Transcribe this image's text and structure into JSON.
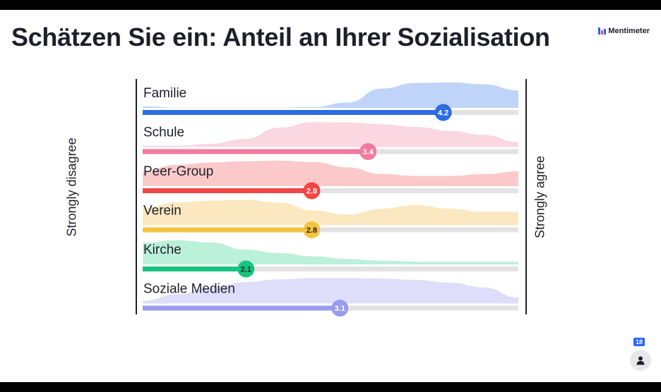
{
  "header": {
    "title": "Schätzen Sie ein: Anteil an Ihrer Sozialisation",
    "brand": "Mentimeter"
  },
  "axis": {
    "left_label": "Strongly disagree",
    "right_label": "Strongly agree"
  },
  "audience": {
    "count": "18",
    "icon": "person-icon"
  },
  "chart_data": {
    "type": "bar",
    "scale": [
      1,
      5
    ],
    "items": [
      {
        "label": "Familie",
        "value": 4.2,
        "value_label": "4.2",
        "color": "#2c6be0",
        "fill": "#bcd2f8",
        "label_color": "#ffffff",
        "distribution": [
          0.06,
          0.01,
          0.01,
          0.01,
          0.01,
          0.03,
          0.2,
          0.72,
          0.93,
          0.95,
          0.88,
          0.65
        ]
      },
      {
        "label": "Schule",
        "value": 3.4,
        "value_label": "3.4",
        "color": "#f27a9e",
        "fill": "#fbd5e0",
        "label_color": "#ffffff",
        "distribution": [
          0.05,
          0.05,
          0.12,
          0.3,
          0.72,
          0.93,
          0.92,
          0.85,
          0.75,
          0.6,
          0.45,
          0.18
        ]
      },
      {
        "label": "Peer-Group",
        "value": 2.8,
        "value_label": "2.8",
        "color": "#f24545",
        "fill": "#fbc6c6",
        "label_color": "#ffffff",
        "distribution": [
          0.55,
          0.8,
          0.88,
          0.93,
          0.95,
          0.9,
          0.7,
          0.45,
          0.38,
          0.38,
          0.45,
          0.55
        ]
      },
      {
        "label": "Verein",
        "value": 2.8,
        "value_label": "2.8",
        "color": "#f5c342",
        "fill": "#fbe7bd",
        "label_color": "#1f1f2b",
        "distribution": [
          0.65,
          0.85,
          0.92,
          0.95,
          0.85,
          0.55,
          0.4,
          0.62,
          0.75,
          0.62,
          0.5,
          0.5
        ]
      },
      {
        "label": "Kirche",
        "value": 2.1,
        "value_label": "2.1",
        "color": "#16c47f",
        "fill": "#b7efd7",
        "label_color": "#1f1f2b",
        "distribution": [
          0.8,
          0.9,
          0.82,
          0.55,
          0.42,
          0.3,
          0.2,
          0.14,
          0.1,
          0.1,
          0.1,
          0.1
        ]
      },
      {
        "label": "Soziale Medien",
        "value": 3.1,
        "value_label": "3.1",
        "color": "#9a9ceb",
        "fill": "#dcdcfa",
        "label_color": "#ffffff",
        "distribution": [
          0.1,
          0.35,
          0.6,
          0.8,
          0.9,
          0.95,
          0.95,
          0.93,
          0.88,
          0.78,
          0.6,
          0.22
        ]
      }
    ]
  }
}
